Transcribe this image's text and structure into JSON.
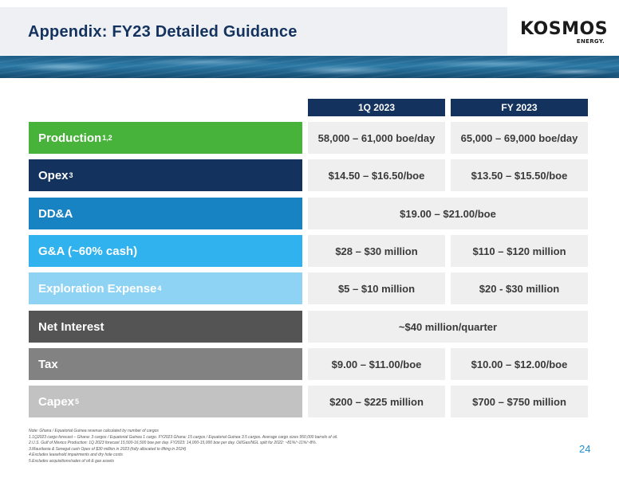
{
  "header": {
    "title": "Appendix: FY23 Detailed Guidance",
    "logo_word": "KOSMOS",
    "logo_sub": "ENERGY."
  },
  "columns": {
    "q1": "1Q 2023",
    "fy": "FY 2023"
  },
  "rows": [
    {
      "label": "Production",
      "sup": "1,2",
      "q1": "58,000 – 61,000 boe/day",
      "fy": "65,000 – 69,000 boe/day",
      "color": "#48b33b"
    },
    {
      "label": "Opex",
      "sup": "3",
      "q1": "$14.50 – $16.50/boe",
      "fy": "$13.50 – $15.50/boe",
      "color": "#14325e"
    },
    {
      "label": "DD&A",
      "sup": "",
      "span": "$19.00 – $21.00/boe",
      "color": "#1783c2"
    },
    {
      "label": "G&A (~60% cash)",
      "sup": "",
      "q1": "$28 – $30 million",
      "fy": "$110 – $120 million",
      "color": "#2fb2ee"
    },
    {
      "label": "Exploration Expense",
      "sup": "4",
      "q1": "$5 – $10 million",
      "fy": "$20 - $30 million",
      "color": "#8fd3f4"
    },
    {
      "label": "Net Interest",
      "sup": "",
      "span": "~$40 million/quarter",
      "color": "#545454"
    },
    {
      "label": "Tax",
      "sup": "",
      "q1": "$9.00 – $11.00/boe",
      "fy": "$10.00 – $12.00/boe",
      "color": "#828282"
    },
    {
      "label": "Capex",
      "sup": "5",
      "q1": "$200 – $225 million",
      "fy": "$700 – $750 million",
      "color": "#c2c2c2"
    }
  ],
  "notes": [
    "Note: Ghana / Equatorial Guinea revenue calculated by number of cargos",
    "1.1Q2023 cargo forecast – Ghana: 3 cargos / Equatorial Guinea 1 cargo. FY2023 Ghana: 15 cargos / Equatorial Guinea 3.5 cargos. Average cargo sizes 950,000 barrels of oil.",
    "2.U.S. Gulf of Mexico Production: 1Q 2023 forecast 15,500-16,500 boe per day. FY2023: 14,000-15,000 boe per day. Oil/Gas/NGL split for 2022: ~81%/~11%/~8%.",
    "3.Mauritania & Senegal cash Opex of $30 million in 2023 (fully allocated to lifting in 2024)",
    "4.Excludes leasehold impairments and dry hole costs",
    "5.Excludes acquisitions/sales of oil & gas assets"
  ],
  "page_number": "24"
}
